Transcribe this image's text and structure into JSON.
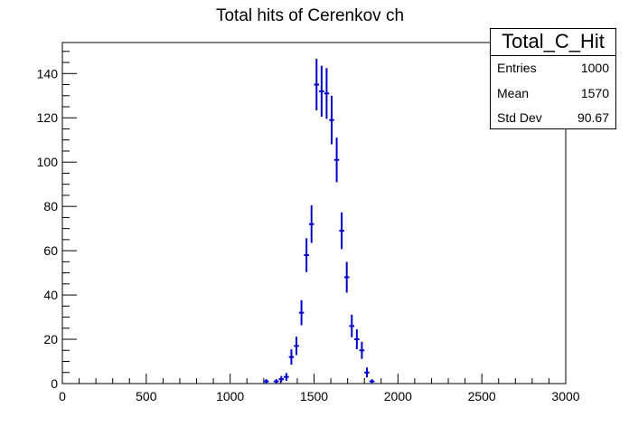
{
  "chart_data": {
    "type": "histogram",
    "title": "Total hits of Cerenkov ch",
    "xlim": [
      0,
      3000
    ],
    "ylim": [
      0,
      154
    ],
    "x_ticks": [
      0,
      500,
      1000,
      1500,
      2000,
      2500,
      3000
    ],
    "y_ticks": [
      0,
      20,
      40,
      60,
      80,
      100,
      120,
      140
    ],
    "bin_width": 30,
    "marker_color": "#0000cc",
    "grid": false,
    "bins": [
      {
        "x": 1215,
        "y": 1
      },
      {
        "x": 1275,
        "y": 1
      },
      {
        "x": 1305,
        "y": 2
      },
      {
        "x": 1335,
        "y": 3
      },
      {
        "x": 1365,
        "y": 12
      },
      {
        "x": 1395,
        "y": 17
      },
      {
        "x": 1425,
        "y": 32
      },
      {
        "x": 1455,
        "y": 58
      },
      {
        "x": 1485,
        "y": 72
      },
      {
        "x": 1515,
        "y": 135
      },
      {
        "x": 1545,
        "y": 132
      },
      {
        "x": 1575,
        "y": 131
      },
      {
        "x": 1605,
        "y": 119
      },
      {
        "x": 1635,
        "y": 101
      },
      {
        "x": 1665,
        "y": 69
      },
      {
        "x": 1695,
        "y": 48
      },
      {
        "x": 1725,
        "y": 26
      },
      {
        "x": 1755,
        "y": 20
      },
      {
        "x": 1785,
        "y": 15
      },
      {
        "x": 1815,
        "y": 5
      },
      {
        "x": 1845,
        "y": 1
      }
    ]
  },
  "stats": {
    "name": "Total_C_Hit",
    "rows": [
      {
        "label": "Entries",
        "value": "1000"
      },
      {
        "label": "Mean",
        "value": "1570"
      },
      {
        "label": "Std Dev",
        "value": "90.67"
      }
    ]
  }
}
